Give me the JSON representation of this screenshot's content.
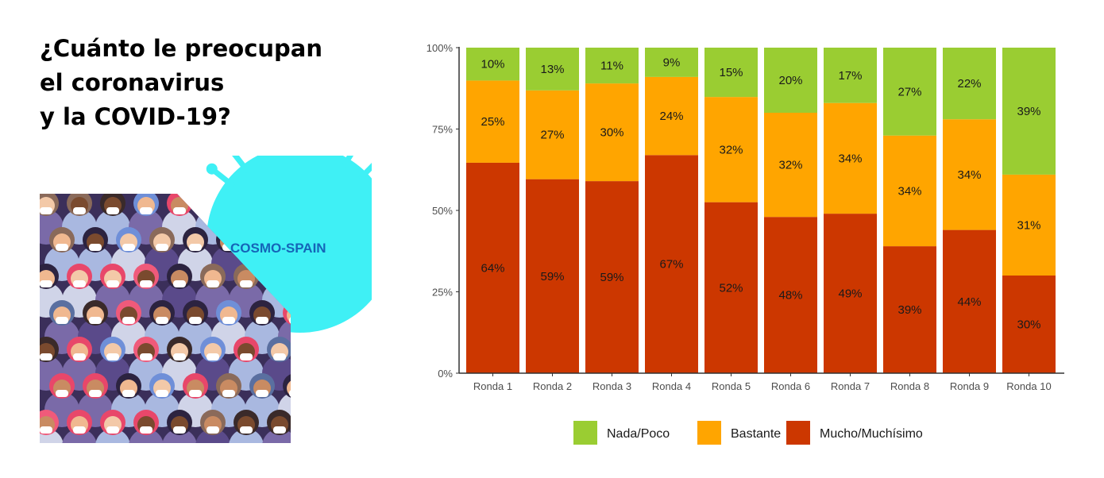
{
  "title_lines": [
    "¿Cuánto le preocupan",
    "el coronavirus",
    "y la COVID-19?"
  ],
  "logo_text": "COSMO-SPAIN",
  "chart_data": {
    "type": "bar",
    "stacked": true,
    "title": "¿Cuánto le preocupan el coronavirus y la COVID-19?",
    "categories": [
      "Ronda 1",
      "Ronda 2",
      "Ronda 3",
      "Ronda 4",
      "Ronda 5",
      "Ronda 6",
      "Ronda 7",
      "Ronda 8",
      "Ronda 9",
      "Ronda 10"
    ],
    "series": [
      {
        "name": "Mucho/Muchísimo",
        "color": "#cc3700",
        "values": [
          64,
          59,
          59,
          67,
          52,
          48,
          49,
          39,
          44,
          30
        ]
      },
      {
        "name": "Bastante",
        "color": "#ffa500",
        "values": [
          25,
          27,
          30,
          24,
          32,
          32,
          34,
          34,
          34,
          31
        ]
      },
      {
        "name": "Nada/Poco",
        "color": "#9acd32",
        "values": [
          10,
          13,
          11,
          9,
          15,
          20,
          17,
          27,
          22,
          39
        ]
      }
    ],
    "legend_order": [
      "Nada/Poco",
      "Bastante",
      "Mucho/Muchísimo"
    ],
    "yticks": [
      "0%",
      "25%",
      "50%",
      "75%",
      "100%"
    ],
    "ylim": [
      0,
      100
    ],
    "xlabel": "",
    "ylabel": "",
    "legend_position": "bottom",
    "grid": false
  }
}
